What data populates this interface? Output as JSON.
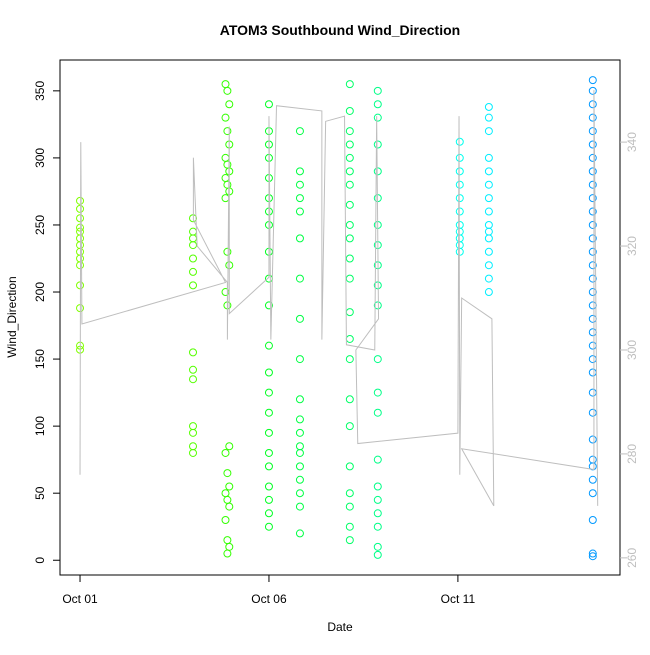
{
  "chart_data": {
    "type": "scatter",
    "title": "ATOM3 Southbound Wind_Direction",
    "x_label": "Date",
    "y_label": "Wind_Direction",
    "xlim": [
      -0.53,
      14.29
    ],
    "xticks": [
      {
        "value": 0,
        "label": "Oct 01"
      },
      {
        "value": 5,
        "label": "Oct 06"
      },
      {
        "value": 10,
        "label": "Oct 11"
      }
    ],
    "ylim": [
      -11,
      373
    ],
    "yticks": [
      0,
      50,
      100,
      150,
      200,
      250,
      300,
      350
    ],
    "y2lim": [
      256.7,
      355.8
    ],
    "y2ticks": [
      260,
      280,
      300,
      320,
      340
    ],
    "series": [
      {
        "color": "#80ff00",
        "x": [
          0,
          0,
          0,
          0,
          0,
          0,
          0,
          0,
          0,
          0,
          0,
          0,
          0,
          0
        ],
        "values": [
          255,
          262,
          248,
          240,
          235,
          230,
          225,
          245,
          220,
          205,
          188,
          160,
          157,
          268
        ]
      },
      {
        "color": "#55ff00",
        "x": [
          2.99,
          2.99,
          2.99,
          2.99,
          2.99,
          2.99,
          2.99,
          2.99,
          2.99,
          2.99,
          2.99,
          2.99,
          2.99,
          2.99
        ],
        "values": [
          255,
          245,
          240,
          235,
          225,
          215,
          205,
          155,
          142,
          135,
          100,
          95,
          85,
          80
        ]
      },
      {
        "color": "#33ff00",
        "x": [
          3.85,
          3.9,
          3.95,
          3.85,
          3.9,
          3.95,
          3.85,
          3.9,
          3.95,
          3.85,
          3.9,
          3.95,
          3.85,
          3.9,
          3.95,
          3.85,
          3.9,
          3.95,
          3.85,
          3.9,
          3.95,
          3.85,
          3.9,
          3.95,
          3.85,
          3.9,
          3.95,
          3.9
        ],
        "values": [
          355,
          350,
          340,
          330,
          320,
          310,
          300,
          295,
          290,
          285,
          280,
          275,
          270,
          230,
          220,
          200,
          190,
          85,
          80,
          65,
          55,
          50,
          45,
          40,
          30,
          15,
          10,
          5
        ]
      },
      {
        "color": "#00ff22",
        "x": [
          5,
          5,
          5,
          5,
          5,
          5,
          5,
          5,
          5,
          5,
          5,
          5,
          5,
          5,
          5,
          5,
          5,
          5,
          5,
          5,
          5,
          5
        ],
        "values": [
          340,
          320,
          310,
          300,
          285,
          270,
          260,
          250,
          230,
          210,
          190,
          160,
          140,
          125,
          110,
          95,
          80,
          70,
          55,
          45,
          35,
          25
        ]
      },
      {
        "color": "#00ff44",
        "x": [
          5.82,
          5.82,
          5.82,
          5.82,
          5.82,
          5.82,
          5.82,
          5.82,
          5.82,
          5.82,
          5.82,
          5.82,
          5.82,
          5.82,
          5.82,
          5.82,
          5.82,
          5.82,
          5.82
        ],
        "values": [
          320,
          290,
          280,
          270,
          260,
          240,
          210,
          180,
          150,
          120,
          105,
          95,
          85,
          80,
          70,
          60,
          50,
          40,
          20
        ]
      },
      {
        "color": "#00ff66",
        "x": [
          7.14,
          7.14,
          7.14,
          7.14,
          7.14,
          7.14,
          7.14,
          7.14,
          7.14,
          7.14,
          7.14,
          7.14,
          7.14,
          7.14,
          7.14,
          7.14,
          7.14,
          7.14,
          7.14,
          7.14,
          7.14,
          7.14
        ],
        "values": [
          355,
          335,
          320,
          310,
          300,
          290,
          280,
          265,
          250,
          240,
          225,
          210,
          185,
          165,
          150,
          120,
          100,
          70,
          50,
          40,
          25,
          15
        ]
      },
      {
        "color": "#00ff88",
        "x": [
          7.88,
          7.88,
          7.88,
          7.88,
          7.88,
          7.88,
          7.88,
          7.88,
          7.88,
          7.88,
          7.88,
          7.88,
          7.88,
          7.88,
          7.88,
          7.88,
          7.88,
          7.88,
          7.88,
          7.88,
          7.88
        ],
        "values": [
          350,
          340,
          330,
          310,
          290,
          270,
          250,
          235,
          220,
          205,
          190,
          150,
          125,
          110,
          75,
          55,
          45,
          35,
          25,
          10,
          4
        ]
      },
      {
        "color": "#00ffee",
        "x": [
          10.05,
          10.05,
          10.05,
          10.05,
          10.05,
          10.05,
          10.05,
          10.05,
          10.05,
          10.05,
          10.05
        ],
        "values": [
          312,
          300,
          290,
          280,
          270,
          260,
          250,
          245,
          240,
          235,
          230
        ]
      },
      {
        "color": "#00eeff",
        "x": [
          10.82,
          10.82,
          10.82,
          10.82,
          10.82,
          10.82,
          10.82,
          10.82,
          10.82,
          10.82,
          10.82,
          10.82,
          10.82,
          10.82,
          10.82
        ],
        "values": [
          338,
          330,
          320,
          300,
          290,
          280,
          270,
          260,
          250,
          245,
          240,
          230,
          220,
          210,
          200
        ]
      },
      {
        "color": "#0099ff",
        "x": [
          13.57,
          13.57,
          13.57,
          13.57,
          13.57,
          13.57,
          13.57,
          13.57,
          13.57,
          13.57,
          13.57,
          13.57,
          13.57,
          13.57,
          13.57,
          13.57,
          13.57,
          13.57,
          13.57,
          13.57,
          13.57,
          13.57,
          13.57,
          13.57,
          13.57,
          13.57,
          13.57,
          13.57,
          13.57,
          13.57,
          13.57,
          13.57,
          13.57
        ],
        "values": [
          358,
          350,
          340,
          330,
          320,
          310,
          300,
          290,
          280,
          270,
          260,
          250,
          240,
          230,
          220,
          210,
          200,
          190,
          180,
          170,
          160,
          150,
          140,
          125,
          110,
          90,
          75,
          70,
          60,
          50,
          30,
          5,
          3
        ]
      },
      {
        "color": "#bebebe",
        "axis": "y2",
        "x": [
          0,
          0.02,
          0.05,
          3.85,
          3.0,
          3.0,
          3.1,
          3.9,
          3.9,
          3.95,
          3.95,
          5.0,
          5.0,
          5.05,
          5.2,
          6.4,
          6.4,
          6.5,
          7.0,
          7.05,
          7.8,
          7.85,
          7.9,
          7.3,
          7.35,
          10.0,
          10.03,
          10.05,
          10.1,
          10.9,
          10.95,
          10.1,
          13.6,
          13.6,
          13.7
        ],
        "values": [
          276,
          340,
          305,
          313,
          325,
          337,
          320,
          313,
          302,
          343,
          307,
          314,
          345,
          302,
          347,
          346,
          302,
          344,
          345,
          301,
          300,
          345,
          306,
          300,
          282,
          284,
          345,
          276,
          310,
          306,
          270,
          281,
          277,
          350,
          270
        ]
      }
    ]
  }
}
